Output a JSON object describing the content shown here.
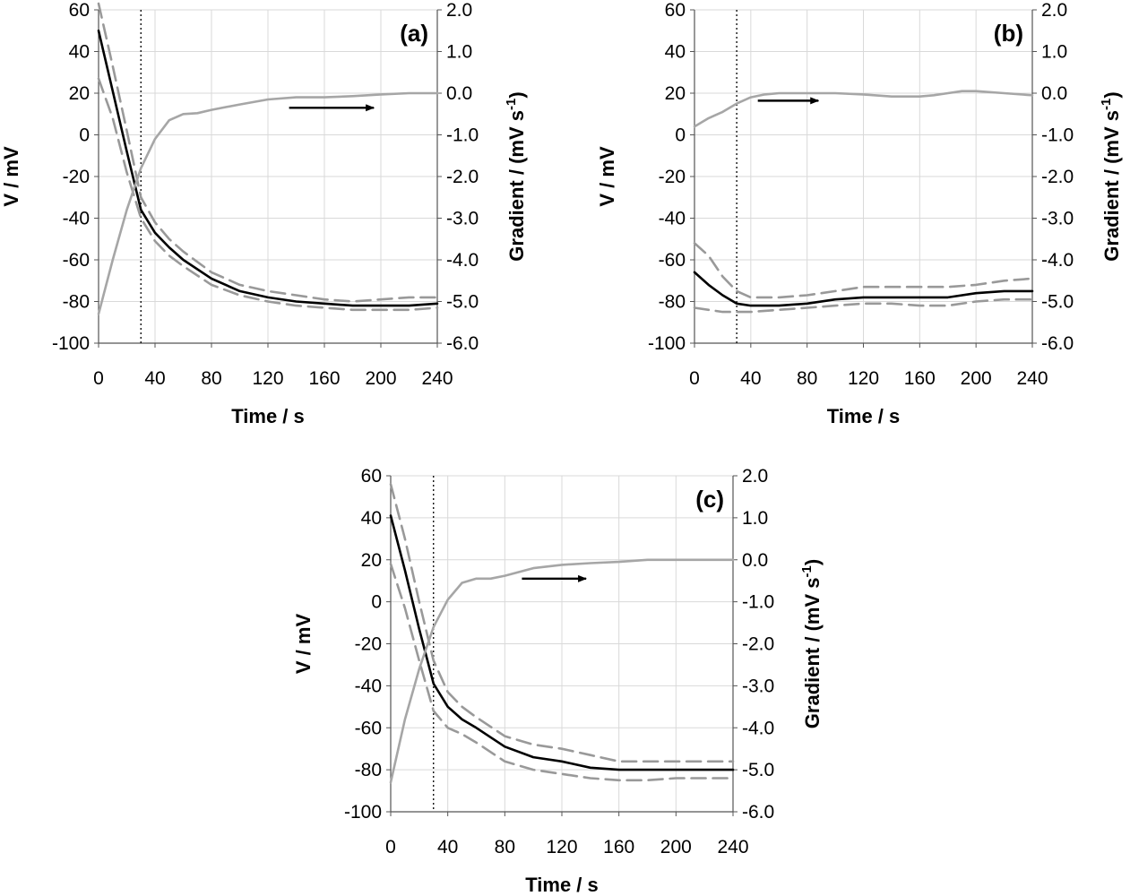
{
  "chart_data": [
    {
      "type": "line",
      "panel_label": "(a)",
      "xlabel": "Time / s",
      "ylabel": "V / mV",
      "y2label": "Gradient / (mV s",
      "y2label_sup": "-1",
      "y2label_close": ")",
      "xlim": [
        0,
        240
      ],
      "ylim": [
        -100,
        60
      ],
      "y2lim": [
        -6.0,
        2.0
      ],
      "x_ticks": [
        "0",
        "40",
        "80",
        "120",
        "160",
        "200",
        "240"
      ],
      "y_ticks": [
        "60",
        "40",
        "20",
        "0",
        "-20",
        "-40",
        "-60",
        "-80",
        "-100"
      ],
      "y2_ticks": [
        "2.0",
        "1.0",
        "0.0",
        "-1.0",
        "-2.0",
        "-3.0",
        "-4.0",
        "-5.0",
        "-6.0"
      ],
      "grid": true,
      "dotted_line_x": 30,
      "series": [
        {
          "name": "mean",
          "style": "solid-black",
          "axis": "left",
          "x": [
            0,
            10,
            20,
            30,
            40,
            50,
            60,
            80,
            100,
            120,
            140,
            160,
            180,
            200,
            220,
            240
          ],
          "values": [
            50,
            21,
            -8,
            -36,
            -47,
            -54,
            -60,
            -69,
            -75,
            -78,
            -80,
            -81,
            -82,
            -82,
            -82,
            -81
          ]
        },
        {
          "name": "upper",
          "style": "dashed-gray",
          "axis": "left",
          "x": [
            0,
            10,
            20,
            30,
            40,
            50,
            60,
            80,
            100,
            120,
            140,
            160,
            180,
            200,
            220,
            240
          ],
          "values": [
            63,
            33,
            2,
            -30,
            -42,
            -50,
            -56,
            -66,
            -72,
            -75,
            -77,
            -79,
            -80,
            -79,
            -78,
            -78
          ]
        },
        {
          "name": "lower",
          "style": "dashed-gray",
          "axis": "left",
          "x": [
            0,
            10,
            20,
            30,
            40,
            50,
            60,
            80,
            100,
            120,
            140,
            160,
            180,
            200,
            220,
            240
          ],
          "values": [
            27,
            8,
            -18,
            -40,
            -51,
            -58,
            -63,
            -72,
            -77,
            -80,
            -82,
            -83,
            -84,
            -84,
            -84,
            -83
          ]
        },
        {
          "name": "gradient",
          "style": "solid-gray",
          "axis": "right",
          "x": [
            0,
            10,
            20,
            30,
            40,
            50,
            60,
            70,
            80,
            100,
            120,
            140,
            160,
            180,
            200,
            220,
            240
          ],
          "values": [
            -5.3,
            -4.0,
            -2.8,
            -1.8,
            -1.1,
            -0.65,
            -0.5,
            -0.48,
            -0.4,
            -0.27,
            -0.15,
            -0.1,
            -0.1,
            -0.07,
            -0.03,
            0.0,
            0.0
          ]
        }
      ],
      "arrow": {
        "x_from": 135,
        "x_to": 195,
        "y2": -0.35
      }
    },
    {
      "type": "line",
      "panel_label": "(b)",
      "xlabel": "Time / s",
      "ylabel": "V / mV",
      "y2label": "Gradient / (mV s",
      "y2label_sup": "-1",
      "y2label_close": ")",
      "xlim": [
        0,
        240
      ],
      "ylim": [
        -100,
        60
      ],
      "y2lim": [
        -6.0,
        2.0
      ],
      "x_ticks": [
        "0",
        "40",
        "80",
        "120",
        "160",
        "200",
        "240"
      ],
      "y_ticks": [
        "60",
        "40",
        "20",
        "0",
        "-20",
        "-40",
        "-60",
        "-80",
        "-100"
      ],
      "y2_ticks": [
        "2.0",
        "1.0",
        "0.0",
        "-1.0",
        "-2.0",
        "-3.0",
        "-4.0",
        "-5.0",
        "-6.0"
      ],
      "grid": true,
      "dotted_line_x": 30,
      "series": [
        {
          "name": "mean",
          "style": "solid-black",
          "axis": "left",
          "x": [
            0,
            10,
            20,
            30,
            40,
            60,
            80,
            100,
            120,
            140,
            160,
            180,
            200,
            220,
            240
          ],
          "values": [
            -66,
            -72,
            -77,
            -81,
            -82,
            -82,
            -81,
            -79,
            -78,
            -78,
            -78,
            -78,
            -76,
            -75,
            -75
          ]
        },
        {
          "name": "upper",
          "style": "dashed-gray",
          "axis": "left",
          "x": [
            0,
            10,
            20,
            30,
            40,
            60,
            80,
            100,
            120,
            140,
            160,
            180,
            200,
            220,
            240
          ],
          "values": [
            -52,
            -58,
            -68,
            -75,
            -78,
            -78,
            -77,
            -75,
            -73,
            -73,
            -73,
            -73,
            -72,
            -70,
            -69
          ]
        },
        {
          "name": "lower",
          "style": "dashed-gray",
          "axis": "left",
          "x": [
            0,
            10,
            20,
            30,
            40,
            60,
            80,
            100,
            120,
            140,
            160,
            180,
            200,
            220,
            240
          ],
          "values": [
            -83,
            -84,
            -85,
            -85,
            -85,
            -84,
            -83,
            -82,
            -81,
            -81,
            -82,
            -82,
            -80,
            -79,
            -79
          ]
        },
        {
          "name": "gradient",
          "style": "solid-gray",
          "axis": "right",
          "x": [
            0,
            10,
            20,
            30,
            40,
            50,
            60,
            80,
            100,
            120,
            140,
            160,
            170,
            180,
            190,
            200,
            220,
            240
          ],
          "values": [
            -0.8,
            -0.6,
            -0.45,
            -0.25,
            -0.1,
            -0.03,
            0.0,
            0.0,
            0.0,
            -0.03,
            -0.08,
            -0.08,
            -0.05,
            0.0,
            0.05,
            0.05,
            0.0,
            -0.05
          ]
        }
      ],
      "arrow": {
        "x_from": 45,
        "x_to": 88,
        "y2": -0.18
      }
    },
    {
      "type": "line",
      "panel_label": "(c)",
      "xlabel": "Time / s",
      "ylabel": "V / mV",
      "y2label": "Gradient / (mV s",
      "y2label_sup": "-1",
      "y2label_close": ")",
      "xlim": [
        0,
        240
      ],
      "ylim": [
        -100,
        60
      ],
      "y2lim": [
        -6.0,
        2.0
      ],
      "x_ticks": [
        "0",
        "40",
        "80",
        "120",
        "160",
        "200",
        "240"
      ],
      "y_ticks": [
        "60",
        "40",
        "20",
        "0",
        "-20",
        "-40",
        "-60",
        "-80",
        "-100"
      ],
      "y2_ticks": [
        "2.0",
        "1.0",
        "0.0",
        "-1.0",
        "-2.0",
        "-3.0",
        "-4.0",
        "-5.0",
        "-6.0"
      ],
      "grid": true,
      "dotted_line_x": 30,
      "series": [
        {
          "name": "mean",
          "style": "solid-black",
          "axis": "left",
          "x": [
            0,
            10,
            20,
            30,
            40,
            50,
            60,
            80,
            100,
            120,
            140,
            160,
            180,
            200,
            220,
            240
          ],
          "values": [
            41,
            15,
            -13,
            -39,
            -50,
            -56,
            -60,
            -69,
            -74,
            -76,
            -79,
            -80,
            -80,
            -80,
            -80,
            -80
          ]
        },
        {
          "name": "upper",
          "style": "dashed-gray",
          "axis": "left",
          "x": [
            0,
            10,
            20,
            30,
            40,
            50,
            60,
            80,
            100,
            120,
            140,
            160,
            180,
            200,
            220,
            240
          ],
          "values": [
            56,
            30,
            0,
            -28,
            -43,
            -50,
            -55,
            -64,
            -68,
            -70,
            -73,
            -76,
            -76,
            -76,
            -76,
            -76
          ]
        },
        {
          "name": "lower",
          "style": "dashed-gray",
          "axis": "left",
          "x": [
            0,
            10,
            20,
            30,
            40,
            50,
            60,
            80,
            100,
            120,
            140,
            160,
            180,
            200,
            220,
            240
          ],
          "values": [
            18,
            -3,
            -28,
            -52,
            -60,
            -63,
            -67,
            -76,
            -80,
            -82,
            -84,
            -85,
            -85,
            -84,
            -84,
            -84
          ]
        },
        {
          "name": "gradient",
          "style": "solid-gray",
          "axis": "right",
          "x": [
            0,
            10,
            20,
            30,
            40,
            50,
            60,
            70,
            80,
            100,
            120,
            140,
            160,
            180,
            200,
            220,
            240
          ],
          "values": [
            -5.3,
            -3.8,
            -2.6,
            -1.6,
            -0.95,
            -0.55,
            -0.45,
            -0.45,
            -0.38,
            -0.2,
            -0.12,
            -0.08,
            -0.05,
            0.0,
            0.0,
            0.0,
            0.0
          ]
        }
      ],
      "arrow": {
        "x_from": 92,
        "x_to": 137,
        "y2": -0.45
      }
    }
  ]
}
